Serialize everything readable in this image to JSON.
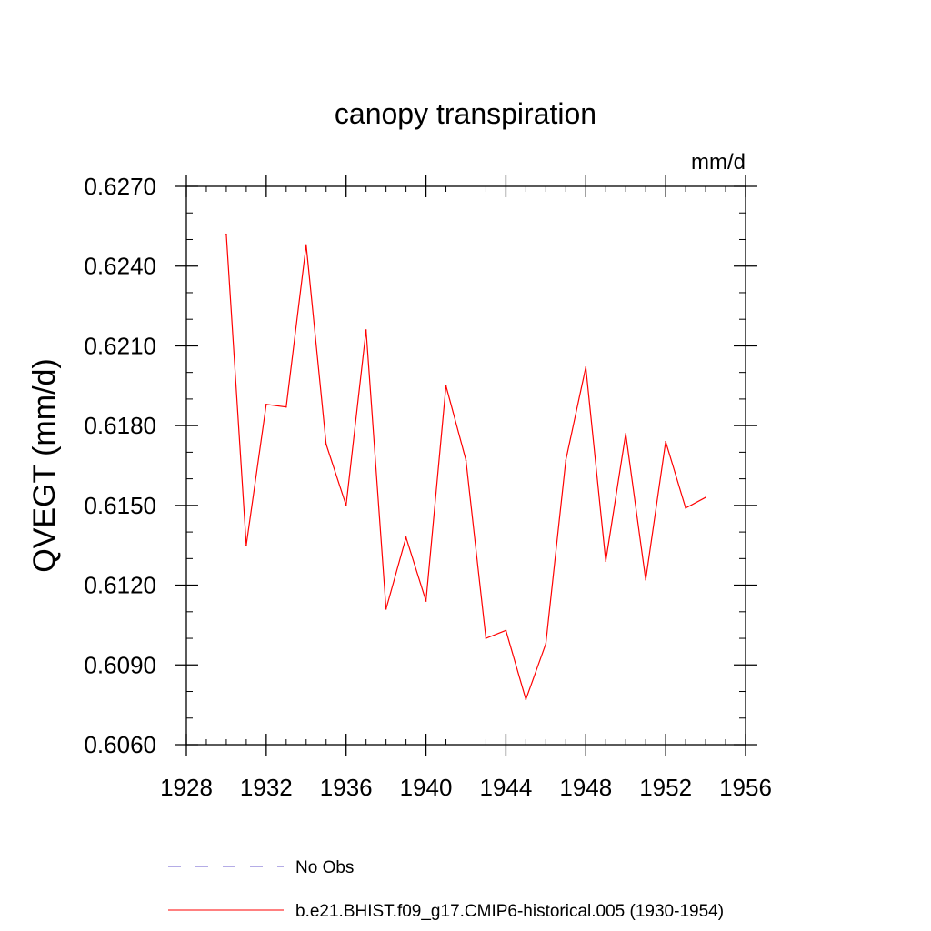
{
  "chart_data": {
    "type": "line",
    "title": "canopy transpiration",
    "units_label": "mm/d",
    "ylabel": "QVEGT  (mm/d)",
    "xlabel": "",
    "xlim": [
      1928,
      1956
    ],
    "ylim": [
      0.606,
      0.627
    ],
    "x_ticks": [
      {
        "value": 1928,
        "label": "1928"
      },
      {
        "value": 1932,
        "label": "1932"
      },
      {
        "value": 1936,
        "label": "1936"
      },
      {
        "value": 1940,
        "label": "1940"
      },
      {
        "value": 1944,
        "label": "1944"
      },
      {
        "value": 1948,
        "label": "1948"
      },
      {
        "value": 1952,
        "label": "1952"
      },
      {
        "value": 1956,
        "label": "1956"
      }
    ],
    "y_ticks": [
      {
        "value": 0.606,
        "label": "0.6060"
      },
      {
        "value": 0.609,
        "label": "0.6090"
      },
      {
        "value": 0.612,
        "label": "0.6120"
      },
      {
        "value": 0.615,
        "label": "0.6150"
      },
      {
        "value": 0.618,
        "label": "0.6180"
      },
      {
        "value": 0.621,
        "label": "0.6210"
      },
      {
        "value": 0.624,
        "label": "0.6240"
      },
      {
        "value": 0.627,
        "label": "0.6270"
      }
    ],
    "x_minor_step": 1,
    "y_minor_step": 0.001,
    "grid": false,
    "series": [
      {
        "name": "b.e21.BHIST.f09_g17.CMIP6-historical.005 (1930-1954)",
        "color": "#ff0000",
        "x": [
          1930,
          1931,
          1932,
          1933,
          1934,
          1935,
          1936,
          1937,
          1938,
          1939,
          1940,
          1941,
          1942,
          1943,
          1944,
          1945,
          1946,
          1947,
          1948,
          1949,
          1950,
          1951,
          1952,
          1953,
          1954
        ],
        "y": [
          0.6252,
          0.6135,
          0.6188,
          0.6187,
          0.6248,
          0.6173,
          0.615,
          0.6216,
          0.6111,
          0.6138,
          0.6114,
          0.6195,
          0.6167,
          0.61,
          0.6103,
          0.6077,
          0.6098,
          0.6167,
          0.6202,
          0.6129,
          0.6177,
          0.6122,
          0.6174,
          0.6149,
          0.6153
        ]
      }
    ],
    "legend": {
      "placement": "bottom",
      "entries": [
        {
          "label": "No Obs",
          "color": "#6a5acd",
          "style": "dashed"
        },
        {
          "label": "b.e21.BHIST.f09_g17.CMIP6-historical.005 (1930-1954)",
          "color": "#ff0000",
          "style": "solid"
        }
      ]
    }
  }
}
